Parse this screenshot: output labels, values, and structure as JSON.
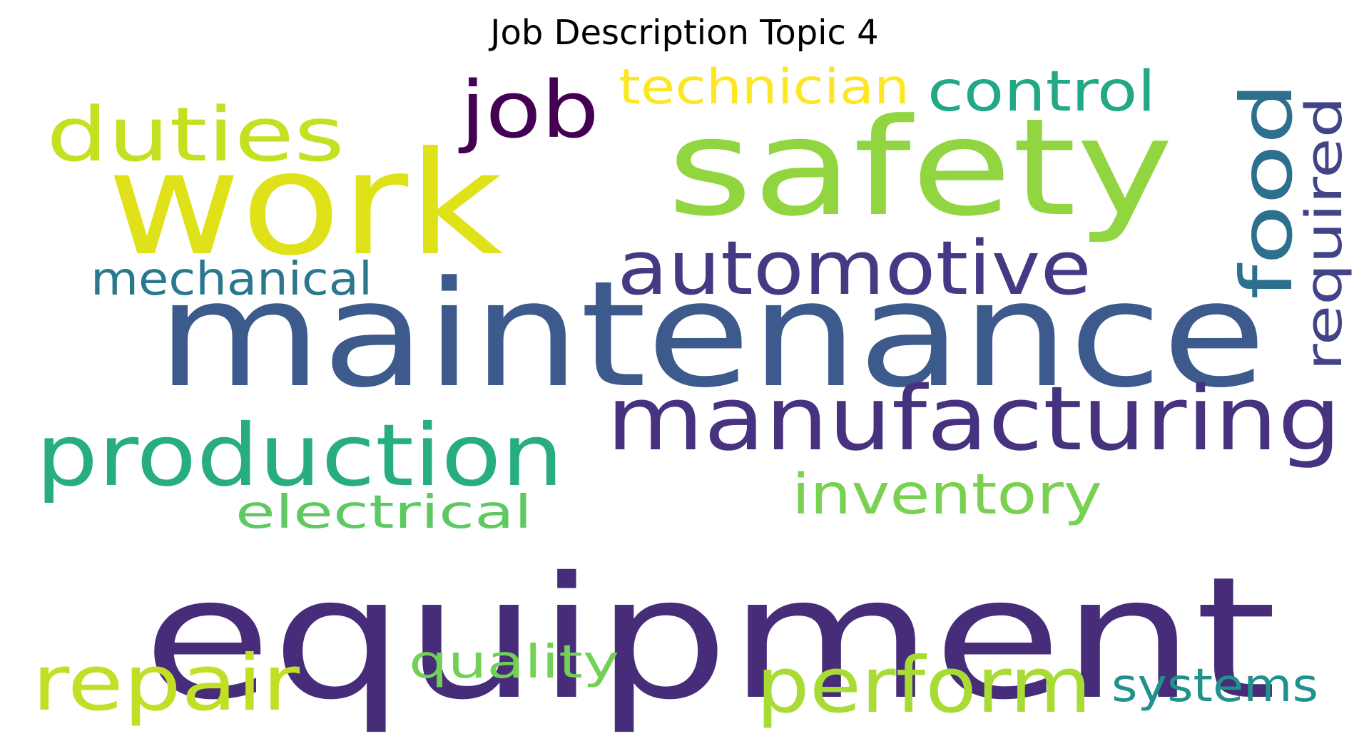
{
  "title": "Job Description Topic 4",
  "words": [
    {
      "text": "equipment",
      "color": "#472c7a",
      "weight": 1.0
    },
    {
      "text": "maintenance",
      "color": "#3d5a8c",
      "weight": 0.9
    },
    {
      "text": "work",
      "color": "#dfe219",
      "weight": 0.72
    },
    {
      "text": "safety",
      "color": "#91d540",
      "weight": 0.68
    },
    {
      "text": "manufacturing",
      "color": "#46327e",
      "weight": 0.5
    },
    {
      "text": "production",
      "color": "#27ad81",
      "weight": 0.45
    },
    {
      "text": "automotive",
      "color": "#443983",
      "weight": 0.4
    },
    {
      "text": "perform",
      "color": "#a8db34",
      "weight": 0.4
    },
    {
      "text": "repair",
      "color": "#c0df25",
      "weight": 0.38
    },
    {
      "text": "duties",
      "color": "#c5e021",
      "weight": 0.37
    },
    {
      "text": "job",
      "color": "#440154",
      "weight": 0.37
    },
    {
      "text": "food",
      "color": "#2d708e",
      "weight": 0.36
    },
    {
      "text": "inventory",
      "color": "#7ad151",
      "weight": 0.27
    },
    {
      "text": "control",
      "color": "#22a884",
      "weight": 0.27
    },
    {
      "text": "technician",
      "color": "#fde725",
      "weight": 0.25
    },
    {
      "text": "required",
      "color": "#414487",
      "weight": 0.25
    },
    {
      "text": "systems",
      "color": "#21918c",
      "weight": 0.23
    },
    {
      "text": "mechanical",
      "color": "#2a788e",
      "weight": 0.23
    },
    {
      "text": "electrical",
      "color": "#5ec962",
      "weight": 0.23
    },
    {
      "text": "quality",
      "color": "#73d056",
      "weight": 0.22
    }
  ]
}
